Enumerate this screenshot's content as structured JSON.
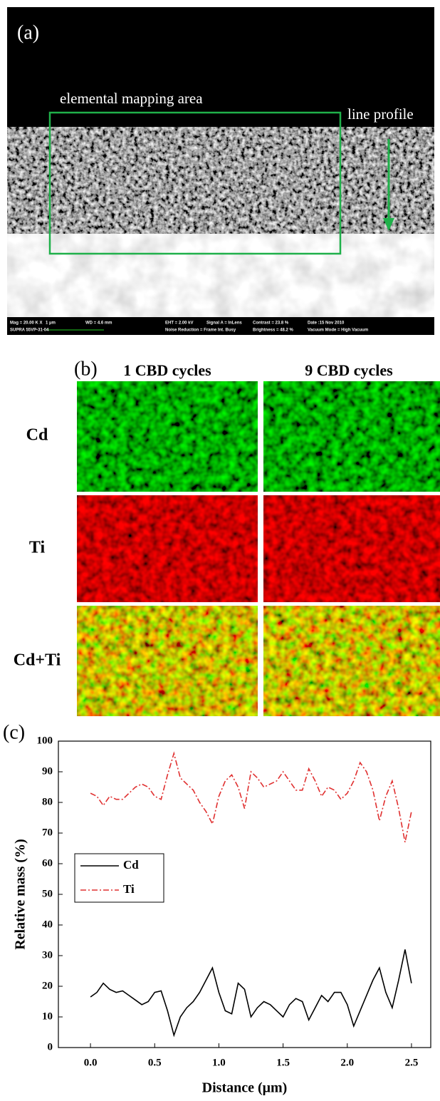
{
  "panel_a": {
    "label": "(a)",
    "box_label": "elemental mapping area",
    "arrow_label": "line profile",
    "info_bar": [
      [
        "Mag = 20.00 K X",
        "1 μm",
        "WD = 4.6 mm",
        "EHT = 2.00 kV",
        "Signal A = InLens",
        "Contrast = 23.8 %",
        "Date :15 Nov 2010"
      ],
      [
        "SUPRA 55VP-31-04",
        "Noise Reduction = Frame Int. Busy",
        "Brightness = 48.2 %",
        "Vacuum Mode = High Vacuum"
      ]
    ]
  },
  "panel_b": {
    "label": "(b)",
    "columns": [
      "1 CBD cycles",
      "9 CBD cycles"
    ],
    "rows": [
      "Cd",
      "Ti",
      "Cd+Ti"
    ]
  },
  "chart_data": {
    "type": "line",
    "label": "(c)",
    "x_label": "Distance (μm)",
    "y_label": "Relative mass (%)",
    "x": [
      0,
      0.05,
      0.1,
      0.15,
      0.2,
      0.25,
      0.3,
      0.35,
      0.4,
      0.45,
      0.5,
      0.55,
      0.6,
      0.65,
      0.7,
      0.75,
      0.8,
      0.85,
      0.9,
      0.95,
      1.0,
      1.05,
      1.1,
      1.15,
      1.2,
      1.25,
      1.3,
      1.35,
      1.4,
      1.45,
      1.5,
      1.55,
      1.6,
      1.65,
      1.7,
      1.75,
      1.8,
      1.85,
      1.9,
      1.95,
      2.0,
      2.05,
      2.1,
      2.15,
      2.2,
      2.25,
      2.3,
      2.35,
      2.4,
      2.45,
      2.5
    ],
    "series": [
      {
        "name": "Cd",
        "color": "#000000",
        "dash": "solid",
        "values": [
          16.5,
          18,
          21,
          19,
          18,
          18.5,
          17,
          15.5,
          14,
          15,
          18,
          18.5,
          12,
          4,
          10,
          13,
          15,
          18,
          22,
          26,
          18,
          12,
          11,
          21,
          19,
          10,
          13,
          15,
          14,
          12,
          10,
          14,
          16,
          15,
          9,
          13,
          17,
          15,
          18,
          18,
          14,
          7,
          12,
          17,
          22,
          26,
          18,
          13,
          22,
          32,
          21
        ]
      },
      {
        "name": "Ti",
        "color": "#e03030",
        "dash": "dash-dot",
        "values": [
          83,
          82,
          79,
          82,
          81,
          81,
          83,
          85,
          86,
          85,
          82,
          81,
          89,
          96,
          88,
          86,
          84,
          80,
          77,
          73,
          82,
          87,
          89,
          85,
          78,
          90,
          88,
          85,
          86,
          87,
          90,
          87,
          84,
          84,
          91,
          87,
          82,
          85,
          84,
          81,
          83,
          87,
          93,
          90,
          84,
          74,
          82,
          87,
          78,
          67,
          77
        ]
      }
    ],
    "xlim": [
      -0.25,
      2.65
    ],
    "ylim": [
      0,
      100
    ],
    "xticks": [
      {
        "value": 0,
        "label": "0.0"
      },
      0.5,
      {
        "value": 1,
        "label": "1.0"
      },
      1.5,
      {
        "value": 2,
        "label": "2.0"
      },
      2.5
    ],
    "yticks": [
      0,
      10,
      20,
      30,
      40,
      50,
      60,
      70,
      80,
      90,
      100
    ],
    "legend": "upper-left"
  }
}
